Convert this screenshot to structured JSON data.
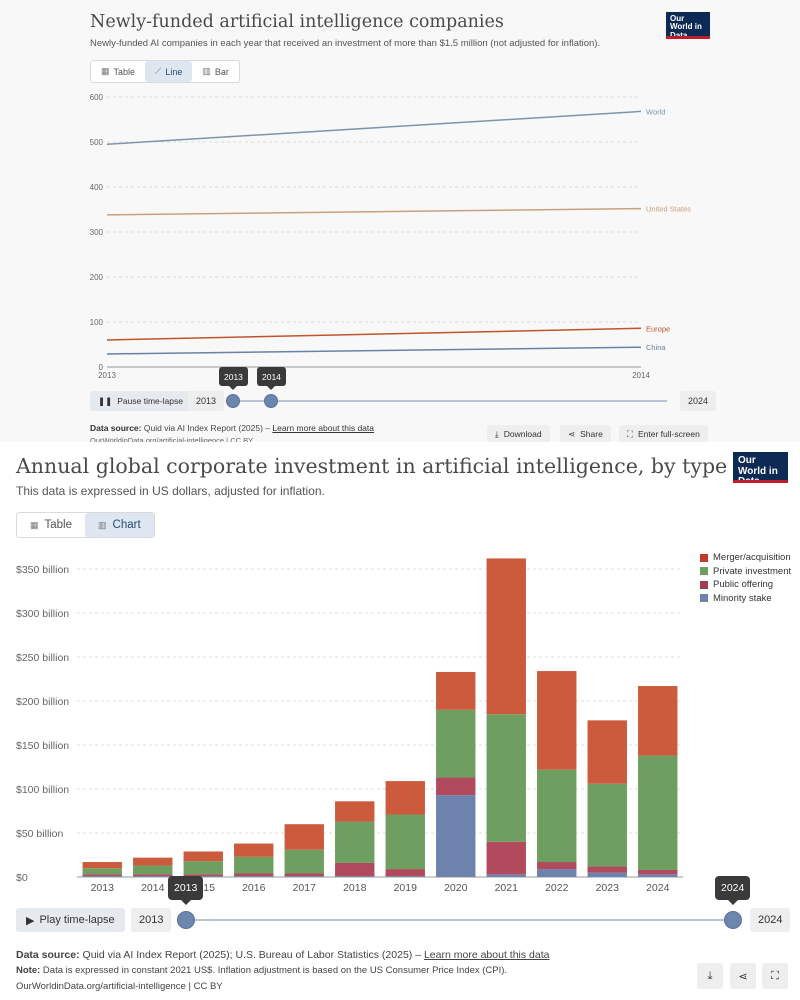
{
  "top": {
    "title": "Newly-funded artificial intelligence companies",
    "subtitle": "Newly-funded AI companies in each year that received an investment of more than $1.5 million (not adjusted for inflation).",
    "logo": "Our World in Data",
    "tabs": [
      {
        "label": "Table",
        "icon": "table-icon",
        "active": false
      },
      {
        "label": "Line",
        "icon": "line-chart-icon",
        "active": true
      },
      {
        "label": "Bar",
        "icon": "bar-chart-icon",
        "active": false
      }
    ],
    "play_label": "Pause time-lapse",
    "start_year": "2013",
    "end_year": "2024",
    "tip_start": "2013",
    "tip_end": "2014",
    "slider": {
      "from": "2013",
      "to": "2014"
    },
    "source_label": "Data source:",
    "source_text": "Quid via AI Index Report (2025) –",
    "source_link": "Learn more about this data",
    "url_text": "OurWorldinData.org/artificial-intelligence | CC BY",
    "download_label": "Download",
    "share_label": "Share",
    "fullscreen_label": "Enter full-screen"
  },
  "bottom": {
    "title": "Annual global corporate investment in artificial intelligence, by type",
    "subtitle": "This data is expressed in US dollars, adjusted for inflation.",
    "logo": "Our World in Data",
    "tabs": [
      {
        "label": "Table",
        "icon": "table-icon",
        "active": false
      },
      {
        "label": "Chart",
        "icon": "bar-chart-icon",
        "active": true
      }
    ],
    "play_label": "Play time-lapse",
    "start_year": "2013",
    "end_year": "2024",
    "tip_start": "2013",
    "tip_end": "2024",
    "source_label": "Data source:",
    "source_text": "Quid via AI Index Report (2025); U.S. Bureau of Labor Statistics (2025) –",
    "source_link": "Learn more about this data",
    "note_label": "Note:",
    "note_text": "Data is expressed in constant 2021 US$. Inflation adjustment is based on the US Consumer Price Index (CPI).",
    "url_text": "OurWorldinData.org/artificial-intelligence | CC BY",
    "icons": [
      "download-icon",
      "share-icon",
      "fullscreen-icon"
    ]
  },
  "chart_data": [
    {
      "type": "line",
      "title": "Newly-funded artificial intelligence companies",
      "x": [
        2013,
        2014
      ],
      "xlim": [
        2013,
        2014
      ],
      "ylim": [
        0,
        600
      ],
      "yticks": [
        0,
        100,
        200,
        300,
        400,
        500,
        600
      ],
      "grid": "horizontal-dashed",
      "series": [
        {
          "name": "World",
          "values": [
            495,
            568
          ],
          "color": "#7e94ad"
        },
        {
          "name": "United States",
          "values": [
            338,
            352
          ],
          "color": "#c9a07e"
        },
        {
          "name": "Europe",
          "values": [
            60,
            86
          ],
          "color": "#c2532f"
        },
        {
          "name": "China",
          "values": [
            29,
            44
          ],
          "color": "#6a81a6"
        }
      ]
    },
    {
      "type": "bar",
      "stacked": true,
      "title": "Annual global corporate investment in artificial intelligence, by type",
      "categories": [
        "2013",
        "2014",
        "2015",
        "2016",
        "2017",
        "2018",
        "2019",
        "2020",
        "2021",
        "2022",
        "2023",
        "2024"
      ],
      "ylim": [
        0,
        375
      ],
      "yticks": [
        0,
        50,
        100,
        150,
        200,
        250,
        300,
        350
      ],
      "ytick_labels": [
        "$0",
        "$50 billion",
        "$100 billion",
        "$150 billion",
        "$200 billion",
        "$250 billion",
        "$300 billion",
        "$350 billion"
      ],
      "legend_position": "right",
      "series": [
        {
          "name": "Minority stake",
          "color": "#6d83ad",
          "values": [
            1,
            1,
            1,
            1,
            1,
            1,
            1,
            93,
            3,
            9,
            5,
            3
          ]
        },
        {
          "name": "Public offering",
          "color": "#b04a5c",
          "values": [
            2,
            2,
            2,
            3,
            3,
            15,
            8,
            20,
            37,
            8,
            7,
            5
          ]
        },
        {
          "name": "Private investment",
          "color": "#6e9e60",
          "values": [
            7,
            10,
            15,
            19,
            27,
            47,
            62,
            77,
            145,
            105,
            94,
            130
          ]
        },
        {
          "name": "Merger/acquisition",
          "color": "#cc5a3c",
          "values": [
            7,
            9,
            11,
            15,
            29,
            23,
            38,
            43,
            177,
            112,
            72,
            79
          ]
        }
      ],
      "legend_order": [
        "Merger/acquisition",
        "Private investment",
        "Public offering",
        "Minority stake"
      ]
    }
  ]
}
